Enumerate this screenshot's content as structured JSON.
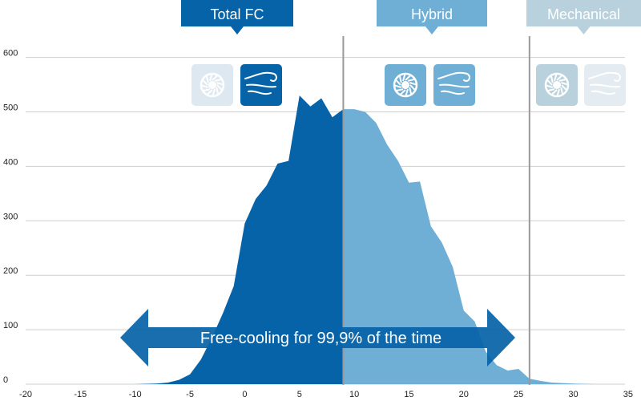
{
  "chart_data": {
    "type": "area",
    "title": "",
    "xlabel": "",
    "ylabel": "",
    "xlim": [
      -20,
      37
    ],
    "ylim": [
      0,
      600
    ],
    "x_ticks": [
      -20,
      -15,
      -10,
      -5,
      0,
      5,
      10,
      15,
      20,
      25,
      30,
      35
    ],
    "y_ticks": [
      0,
      100,
      200,
      300,
      400,
      500,
      600
    ],
    "grid": "horizontal",
    "zones": [
      {
        "name": "Total FC",
        "from": -20,
        "to": 9,
        "color": "#0763a8",
        "icons": [
          "fan-icon",
          "wind-icon"
        ]
      },
      {
        "name": "Hybrid",
        "from": 9,
        "to": 26,
        "color": "#6fafd6",
        "icons": [
          "fan-icon",
          "wind-icon"
        ]
      },
      {
        "name": "Mechanical",
        "from": 26,
        "to": 37,
        "color": "#b9d1dd",
        "icons": [
          "fan-icon",
          "wind-icon"
        ]
      }
    ],
    "thresholds": [
      9,
      26
    ],
    "annotation": "Free-cooling for 99,9% of the time",
    "series": [
      {
        "x": [
          -10,
          -8,
          -7,
          -6,
          -5,
          -4,
          -3,
          -2,
          -1,
          0,
          1,
          2,
          3,
          4,
          5,
          6,
          7,
          8,
          9,
          10,
          11,
          12,
          13,
          14,
          15,
          16,
          17,
          18,
          19,
          20,
          21,
          22,
          23,
          24,
          25,
          26,
          27,
          28,
          30,
          32
        ],
        "values": [
          0,
          1,
          3,
          8,
          18,
          45,
          85,
          130,
          180,
          295,
          340,
          365,
          405,
          410,
          530,
          510,
          525,
          490,
          505,
          505,
          500,
          480,
          440,
          410,
          370,
          372,
          290,
          260,
          215,
          135,
          115,
          60,
          35,
          25,
          28,
          10,
          6,
          3,
          1,
          0
        ]
      }
    ]
  }
}
